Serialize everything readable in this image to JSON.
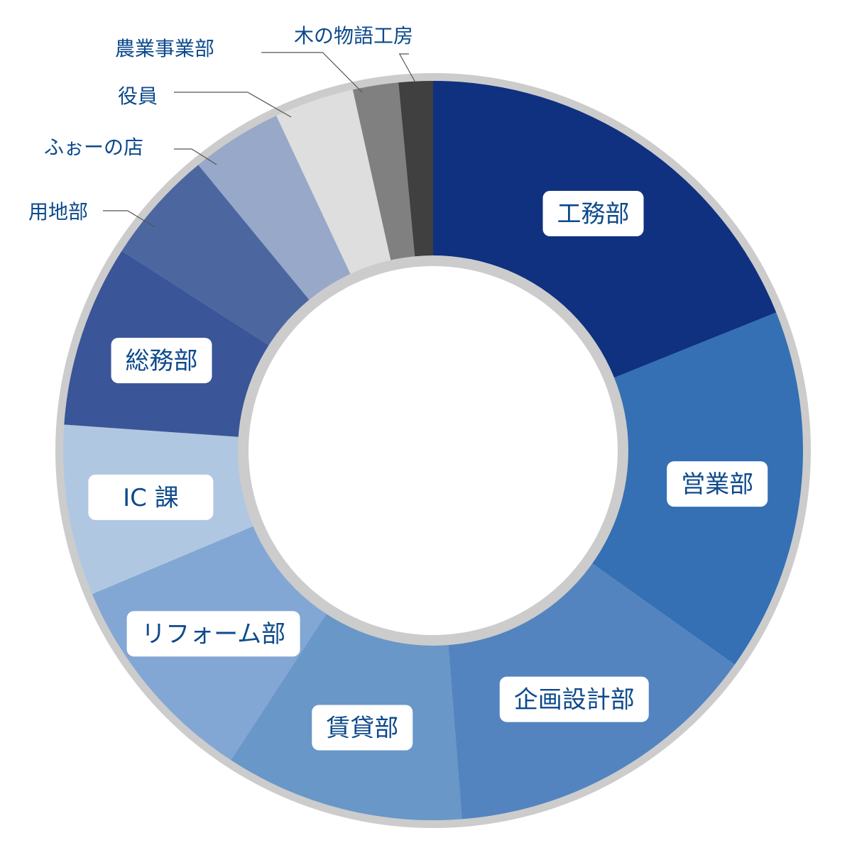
{
  "chart_data": {
    "type": "pie",
    "variant": "donut",
    "title": "",
    "ring_color": "#cccccc",
    "slices": [
      {
        "label": "工務部",
        "value": 19.0,
        "color": "#0f3180",
        "label_style": "box"
      },
      {
        "label": "営業部",
        "value": 16.0,
        "color": "#3470b3",
        "label_style": "box"
      },
      {
        "label": "企画設計部",
        "value": 14.0,
        "color": "#5384c0",
        "label_style": "box"
      },
      {
        "label": "賃貸部",
        "value": 10.5,
        "color": "#6897c8",
        "label_style": "box"
      },
      {
        "label": "リフォーム部",
        "value": 9.5,
        "color": "#82a7d4",
        "label_style": "box"
      },
      {
        "label": "IC 課",
        "value": 7.5,
        "color": "#b0c7e2",
        "label_style": "box"
      },
      {
        "label": "総務部",
        "value": 8.0,
        "color": "#3a5598",
        "label_style": "box"
      },
      {
        "label": "用地部",
        "value": 5.0,
        "color": "#4c67a0",
        "label_style": "external"
      },
      {
        "label": "ふぉーの店",
        "value": 4.0,
        "color": "#97a8c9",
        "label_style": "external"
      },
      {
        "label": "役員",
        "value": 3.5,
        "color": "#dedede",
        "label_style": "external"
      },
      {
        "label": "農業事業部",
        "value": 2.0,
        "color": "#808080",
        "label_style": "external"
      },
      {
        "label": "木の物語工房",
        "value": 1.5,
        "color": "#404040",
        "label_style": "external"
      }
    ]
  }
}
